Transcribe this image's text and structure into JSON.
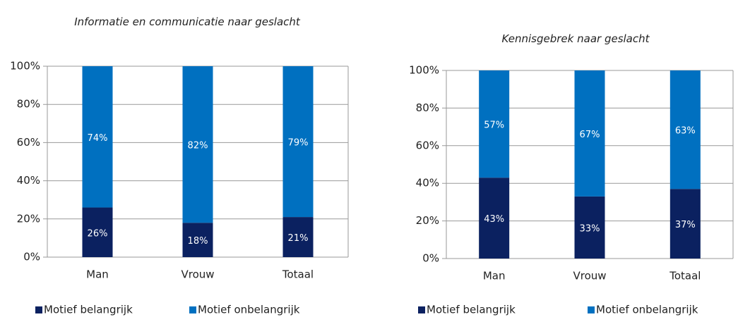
{
  "chart_data": [
    {
      "type": "stacked_bar",
      "title": "Informatie en communicatie naar geslacht",
      "categories": [
        "Man",
        "Vrouw",
        "Totaal"
      ],
      "series": [
        {
          "name": "Motief belangrijk",
          "color": "#0b2160",
          "values": [
            26,
            18,
            21
          ],
          "value_labels": [
            "26%",
            "18%",
            "21%"
          ]
        },
        {
          "name": "Motief onbelangrijk",
          "color": "#0070c0",
          "values": [
            74,
            82,
            79
          ],
          "value_labels": [
            "74%",
            "82%",
            "79%"
          ]
        }
      ],
      "ylim": [
        0,
        100
      ],
      "yticks": [
        {
          "value": 0,
          "label": "0%"
        },
        {
          "value": 20,
          "label": "20%"
        },
        {
          "value": 40,
          "label": "40%"
        },
        {
          "value": 60,
          "label": "60%"
        },
        {
          "value": 80,
          "label": "80%"
        },
        {
          "value": 100,
          "label": "100%"
        }
      ],
      "grid": true,
      "legend": "bottom"
    },
    {
      "type": "stacked_bar",
      "title": "Kennisgebrek naar geslacht",
      "categories": [
        "Man",
        "Vrouw",
        "Totaal"
      ],
      "series": [
        {
          "name": "Motief belangrijk",
          "color": "#0b2160",
          "values": [
            43,
            33,
            37
          ],
          "value_labels": [
            "43%",
            "33%",
            "37%"
          ]
        },
        {
          "name": "Motief onbelangrijk",
          "color": "#0070c0",
          "values": [
            57,
            67,
            63
          ],
          "value_labels": [
            "57%",
            "67%",
            "63%"
          ]
        }
      ],
      "ylim": [
        0,
        100
      ],
      "yticks": [
        {
          "value": 0,
          "label": "0%"
        },
        {
          "value": 20,
          "label": "20%"
        },
        {
          "value": 40,
          "label": "40%"
        },
        {
          "value": 60,
          "label": "60%"
        },
        {
          "value": 80,
          "label": "80%"
        },
        {
          "value": 100,
          "label": "100%"
        }
      ],
      "grid": true,
      "legend": "bottom"
    }
  ]
}
